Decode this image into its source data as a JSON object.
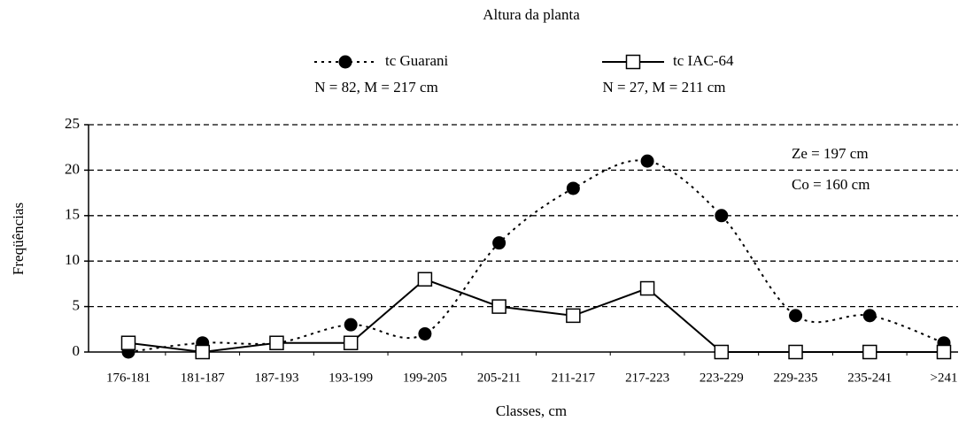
{
  "chart_data": {
    "type": "line",
    "title": "Altura da planta",
    "xlabel": "Classes, cm",
    "ylabel": "Freqüências",
    "categories": [
      "176-181",
      "181-187",
      "187-193",
      "193-199",
      "199-205",
      "205-211",
      "211-217",
      "217-223",
      "223-229",
      "229-235",
      "235-241",
      ">241"
    ],
    "series": [
      {
        "name": "tc Guarani",
        "legend_note": "N = 82, M = 217 cm",
        "color": "#000000",
        "marker": "filled-circle",
        "line": "dotted",
        "values": [
          0,
          1,
          1,
          3,
          2,
          12,
          18,
          21,
          15,
          4,
          4,
          1
        ]
      },
      {
        "name": "tc IAC-64",
        "legend_note": "N = 27, M = 211 cm",
        "color": "#000000",
        "marker": "open-square",
        "line": "solid",
        "values": [
          1,
          0,
          1,
          1,
          8,
          5,
          4,
          7,
          0,
          0,
          0,
          0
        ]
      }
    ],
    "annotations": [
      "Ze = 197 cm",
      "Co = 160 cm"
    ],
    "ylim": [
      0,
      25
    ],
    "yticks": [
      0,
      5,
      10,
      15,
      20,
      25
    ],
    "grid": true
  }
}
